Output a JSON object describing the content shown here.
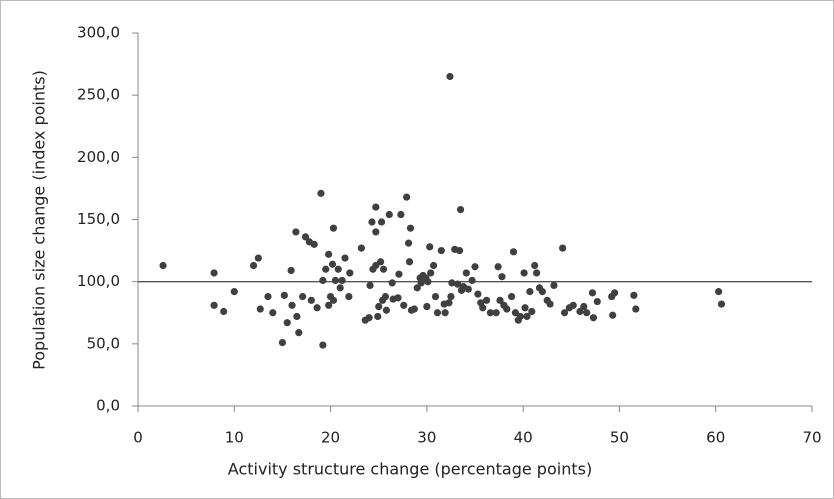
{
  "chart_data": {
    "type": "scatter",
    "x_label": "Activity structure change (percentage  points)",
    "y_label": "Population size change (index points)",
    "xlim": [
      0,
      70
    ],
    "xticks": [
      0,
      10,
      20,
      30,
      40,
      50,
      60,
      70
    ],
    "ylim": [
      0,
      300
    ],
    "yticks": [
      {
        "value": 0,
        "label": "0,0"
      },
      {
        "value": 50,
        "label": "50,0"
      },
      {
        "value": 100,
        "label": "100,0"
      },
      {
        "value": 150,
        "label": "150,0"
      },
      {
        "value": 200,
        "label": "200,0"
      },
      {
        "value": 250,
        "label": "250,0"
      },
      {
        "value": 300,
        "label": "300,0"
      }
    ],
    "hline": 100,
    "color": "#404040",
    "x": [
      2.6,
      7.9,
      7.9,
      8.9,
      10,
      12,
      12.5,
      12.7,
      13.5,
      14,
      15,
      15.2,
      15.5,
      15.9,
      16,
      16.4,
      16.5,
      16.7,
      17.1,
      17.4,
      17.8,
      18,
      18.3,
      18.6,
      19,
      19.2,
      19.2,
      19.5,
      19.8,
      19.8,
      20,
      20.2,
      20.3,
      20.3,
      20.5,
      20.8,
      21,
      21.2,
      21.5,
      21.9,
      22,
      23.2,
      23.6,
      24,
      24.1,
      24.3,
      24.4,
      24.7,
      24.7,
      24.7,
      24.9,
      25,
      25.2,
      25.3,
      25.4,
      25.5,
      25.7,
      25.8,
      26.1,
      26.4,
      26.5,
      27,
      27.1,
      27.3,
      27.6,
      27.9,
      28.1,
      28.2,
      28.3,
      28.4,
      28.7,
      29,
      29.3,
      29.4,
      29.6,
      29.9,
      30,
      30.1,
      30.3,
      30.4,
      30.7,
      30.9,
      31.1,
      31.5,
      31.8,
      31.9,
      32.3,
      32.4,
      32.5,
      32.6,
      32.9,
      33.2,
      33.4,
      33.5,
      33.6,
      33.8,
      34.1,
      34.3,
      34.7,
      35,
      35.3,
      35.6,
      35.8,
      36.2,
      36.6,
      37.2,
      37.4,
      37.6,
      37.8,
      38,
      38.3,
      38.8,
      39,
      39.2,
      39.5,
      39.7,
      40.1,
      40.2,
      40.4,
      40.7,
      40.9,
      41.2,
      41.4,
      41.7,
      42,
      42.5,
      42.8,
      43.2,
      44.1,
      44.3,
      44.8,
      45.2,
      45.9,
      46.3,
      46.6,
      47.2,
      47.3,
      47.7,
      49.2,
      49.5,
      49.3,
      51.5,
      51.7,
      60.3,
      60.6
    ],
    "values": [
      113,
      107,
      81,
      76,
      92,
      113,
      119,
      78,
      88,
      75,
      51,
      89,
      67,
      109,
      81,
      140,
      72,
      59,
      88,
      136,
      132,
      85,
      130,
      79,
      171,
      49,
      101,
      110,
      122,
      81,
      88,
      114,
      143,
      85,
      101,
      110,
      95,
      101,
      119,
      88,
      107,
      127,
      69,
      71,
      97,
      148,
      110,
      160,
      140,
      113,
      72,
      80,
      116,
      148,
      85,
      110,
      88,
      77,
      154,
      99,
      86,
      87,
      106,
      154,
      81,
      168,
      131,
      116,
      143,
      77,
      78,
      95,
      103,
      99,
      105,
      103,
      80,
      100,
      128,
      107,
      113,
      88,
      75,
      125,
      82,
      75,
      83,
      265,
      88,
      99,
      126,
      98,
      125,
      158,
      93,
      96,
      107,
      94,
      101,
      112,
      90,
      83,
      79,
      85,
      75,
      75,
      112,
      85,
      104,
      81,
      78,
      88,
      124,
      75,
      69,
      72,
      107,
      79,
      72,
      92,
      76,
      113,
      107,
      95,
      92,
      85,
      82,
      97,
      127,
      75,
      79,
      81,
      76,
      80,
      75,
      91,
      71,
      84,
      88,
      91,
      73,
      89,
      78,
      92,
      82
    ]
  }
}
